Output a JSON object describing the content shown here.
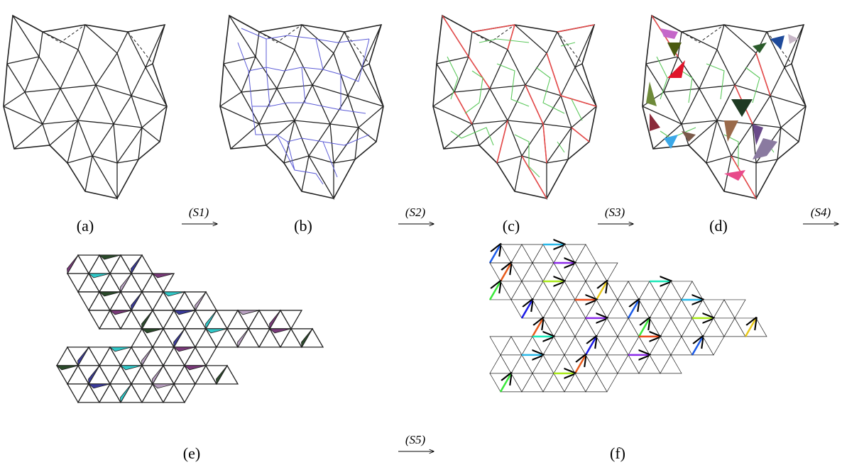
{
  "panels": [
    {
      "label": "(a)"
    },
    {
      "label": "(b)"
    },
    {
      "label": "(c)"
    },
    {
      "label": "(d)"
    },
    {
      "label": "(e)"
    },
    {
      "label": "(f)"
    }
  ],
  "arrows": [
    {
      "label": "(S1)"
    },
    {
      "label": "(S2)"
    },
    {
      "label": "(S3)"
    },
    {
      "label": "(S4)"
    },
    {
      "label": "(S5)"
    }
  ]
}
